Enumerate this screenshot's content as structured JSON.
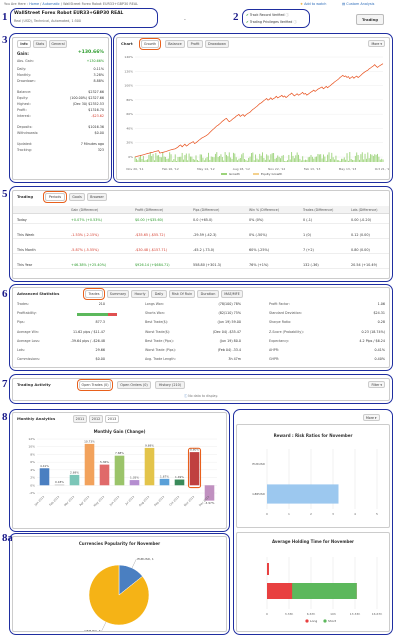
{
  "breadcrumb": {
    "prefix": "You Are Here :",
    "items": [
      "Home",
      "Automatic",
      "WallStreet Forex Robot EUR33+GBP30 REAL"
    ]
  },
  "header": {
    "add_to_watch": "Add to watch",
    "custom_analysis": "Custom Analysis",
    "title": "WallStreet Forex Robot EUR33+GBP30 REAL",
    "subtitle": "Real (USD), Technical, Automated, 1:500",
    "track_record": "Track Record Verified",
    "trading_privileges": "Trading Privileges Verified",
    "trading_button": "Trading"
  },
  "annotations": [
    "1",
    "2",
    "3",
    "4",
    "5",
    "6",
    "7",
    "8",
    "8a"
  ],
  "info": {
    "tabs": [
      "Info",
      "Stats",
      "General"
    ],
    "gain_label": "Gain:",
    "gain_value": "+130.66%",
    "rows": [
      {
        "k": "Abs. Gain:",
        "v": "+130.66%"
      },
      {
        "k": "Daily:",
        "v": "0.11%"
      },
      {
        "k": "Monthly:",
        "v": "3.28%"
      },
      {
        "k": "Drawdown:",
        "v": "8.88%"
      },
      {
        "k": "Balance:",
        "v": "$2327.66"
      },
      {
        "k": "Equity:",
        "v": "(100.00%) $2327.66"
      },
      {
        "k": "Highest:",
        "v": "(Dec 30) $2352.53"
      },
      {
        "k": "Profit:",
        "v": "$1316.70"
      },
      {
        "k": "Interest:",
        "v": "-$23.62"
      },
      {
        "k": "Deposits:",
        "v": "$1016.36"
      },
      {
        "k": "Withdrawals:",
        "v": "$0.00"
      },
      {
        "k": "Updated:",
        "v": "7 Minutes ago"
      },
      {
        "k": "Tracking:",
        "v": "323"
      }
    ]
  },
  "chart": {
    "label": "Chart",
    "tabs": [
      "Growth",
      "Balance",
      "Profit",
      "Drawdown"
    ],
    "more": "More",
    "y_ticks": [
      "140%",
      "120%",
      "100%",
      "80%",
      "60%",
      "40%",
      "20%",
      "0%"
    ],
    "x_ticks": [
      "Nov 20, '11",
      "Feb 16, '12",
      "May 14, '12",
      "Aug 18, '12",
      "Nov 22, '12",
      "Feb 13, '13",
      "May 13, '13",
      "Oct 21, '13"
    ],
    "legend": [
      "Growth",
      "Equity Growth"
    ],
    "line_color": "#e8501c",
    "bar_color": "#9cd37a"
  },
  "trading": {
    "label": "Trading",
    "tabs": [
      "Periods",
      "Goals",
      "Browser"
    ],
    "headers": [
      "Gain (Difference)",
      "Profit (Difference)",
      "Pips (Difference)",
      "Win % (Difference)",
      "Trades (Difference)",
      "Lots (Difference)"
    ],
    "rows": [
      {
        "name": "Today",
        "gain": "+0.07% (+0.53%)",
        "profit": "$0.00 (+$35.60)",
        "pips": "0.0 (+65.0)",
        "win": "0% (0%)",
        "trades": "0 (-1)",
        "lots": "0.00 (-0.20)"
      },
      {
        "name": "This Week",
        "gain": "-1.53% (-2.15%)",
        "profit": "-$35.65 (-$55.72)",
        "pips": "-29.59 (-42.3)",
        "win": "0% (-50%)",
        "trades": "1 (0)",
        "lots": "0.12 (0.00)"
      },
      {
        "name": "This Month",
        "gain": "-5.87% (-5.55%)",
        "profit": "-$30.48 (-$157.71)",
        "pips": "-45.2 (-73.0)",
        "win": "60% (-25%)",
        "trades": "7 (+2)",
        "lots": "0.80 (0.00)"
      },
      {
        "name": "This Year",
        "gain": "+46.38% (+25.40%)",
        "profit": "$926.14 (+$684.71)",
        "pips": "558.80 (+301.3)",
        "win": "76% (+1%)",
        "trades": "132 (-36)",
        "lots": "20.54 (+10.49)"
      }
    ]
  },
  "advanced": {
    "label": "Advanced Statistics",
    "tabs": [
      "Trades",
      "Summary",
      "Hourly",
      "Daily",
      "Risk Of Ruin",
      "Duration",
      "MAE/MFE"
    ],
    "col1": [
      {
        "k": "Trades:",
        "v": "210"
      },
      {
        "k": "Profitability:",
        "v": ""
      },
      {
        "k": "Pips:",
        "v": "877.3"
      },
      {
        "k": "Average Win:",
        "v": "11.62 pips / $11.47"
      },
      {
        "k": "Average Loss:",
        "v": "-39.64 pips / -$26.48"
      },
      {
        "k": "Lots:",
        "v": "29.66"
      },
      {
        "k": "Commissions:",
        "v": "$0.00"
      }
    ],
    "col2": [
      {
        "k": "Longs Won:",
        "v": "(78/100) 78%"
      },
      {
        "k": "Shorts Won:",
        "v": "(82/110) 75%"
      },
      {
        "k": "Best Trade($):",
        "v": "(Jun 19) 59.00"
      },
      {
        "k": "Worst Trade($):",
        "v": "(Dec 04) -$35.47"
      },
      {
        "k": "Best Trade (Pips):",
        "v": "(Jun 19) 80.0"
      },
      {
        "k": "Worst Trade (Pips):",
        "v": "(Feb 04) -33.4"
      },
      {
        "k": "Avg. Trade Length:",
        "v": "3h 47m"
      }
    ],
    "col3": [
      {
        "k": "Profit Factor:",
        "v": "1.06"
      },
      {
        "k": "Standard Deviation:",
        "v": "$24.31"
      },
      {
        "k": "Sharpe Ratio:",
        "v": "0.28"
      },
      {
        "k": "Z-Score (Probability):",
        "v": "0.23 (18.74%)"
      },
      {
        "k": "Expectancy:",
        "v": "4.2 Pips / $6.24"
      },
      {
        "k": "AHPR:",
        "v": "0.41%"
      },
      {
        "k": "GHPR:",
        "v": "0.40%"
      }
    ],
    "profitability_ratio": 0.77,
    "win_color": "#5cb85c",
    "loss_color": "#e05050"
  },
  "activity": {
    "label": "Trading Activity",
    "tabs": [
      "Open Trades (0)",
      "Open Orders (0)",
      "History (210)"
    ],
    "filter": "Filter",
    "empty": "No data to display."
  },
  "monthly": {
    "label": "Monthly Analytics",
    "tabs": [
      "2011",
      "2012",
      "2013"
    ],
    "more": "More",
    "title": "Monthly Gain (Change)",
    "y_ticks": [
      "12%",
      "10%",
      "8%",
      "6%",
      "4%",
      "2%",
      "0%",
      "-2%"
    ],
    "months": [
      "Jan 2013",
      "Feb 2013",
      "Mar 2013",
      "Apr 2013",
      "May 2013",
      "Jun 2013",
      "Jul 2013",
      "Aug 2013",
      "Sep 2013",
      "Oct 2013",
      "Nov 2013",
      "Dec 2013"
    ],
    "values": [
      4.41,
      0.18,
      2.69,
      10.73,
      5.36,
      7.68,
      1.35,
      9.69,
      1.67,
      1.49,
      8.6,
      -3.97
    ],
    "labels": [
      "4.41%",
      "0.18%",
      "2.69%",
      "10.73%",
      "5.36%",
      "7.68%",
      "1.35%",
      "9.69%",
      "1.67%",
      "1.49%",
      "8.60%",
      "-3.97%"
    ],
    "colors": [
      "#4a7fc1",
      "#b8b8b8",
      "#7cc6b8",
      "#f2a25c",
      "#e06a6a",
      "#9bc46a",
      "#b58ed0",
      "#e3c44a",
      "#5aa0d8",
      "#3a8a5a",
      "#c04040",
      "#c090c0"
    ]
  },
  "reward": {
    "title": "Reward : Risk Ratios for November",
    "pairs": [
      "EURUSD",
      "GBPUSD"
    ],
    "x_ticks": [
      "0",
      "1",
      "2",
      "3",
      "4",
      "5"
    ],
    "values": [
      0,
      3.25
    ],
    "bar_color": "#9cc8ef"
  },
  "holding": {
    "title": "Average Holding Time for November",
    "x_ticks": [
      "0",
      "3.33h",
      "6.67h",
      "10h",
      "13.33h",
      "16.67h"
    ],
    "legend": [
      "Long",
      "Short"
    ],
    "long_value": 0.3,
    "short_value": 13.6,
    "max": 16.67,
    "long_color": "#e84040",
    "short_color": "#5cb85c"
  },
  "currencies": {
    "title": "Currencies Popularity for November",
    "slices": [
      {
        "name": "EURUSD",
        "value": 1
      },
      {
        "name": "GBPUSD",
        "value": 6
      }
    ],
    "labels": [
      "EURUSD, 1",
      "GBPUSD, 6"
    ],
    "colors": [
      "#4a7fc1",
      "#f5b316"
    ]
  }
}
